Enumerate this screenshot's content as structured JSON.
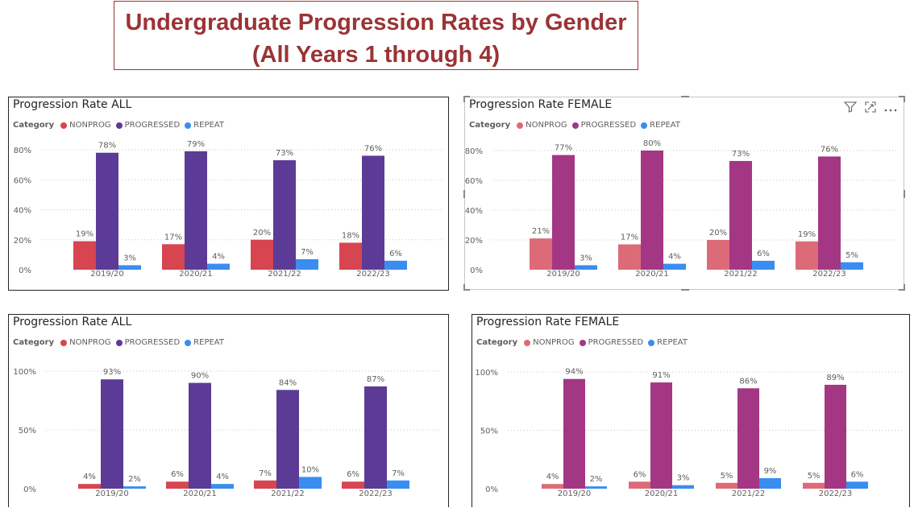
{
  "page": {
    "title_line1": "Undergraduate Progression Rates by Gender",
    "title_line2": "(All Years 1 through 4)"
  },
  "legend_title": "Category",
  "colors": {
    "all": [
      "#d64550",
      "#5c3b97",
      "#3a8df0"
    ],
    "female": [
      "#dc6b77",
      "#a33784",
      "#3a8df0"
    ]
  },
  "icons": [
    "filter-icon",
    "focus-mode-icon",
    "more-options-icon"
  ],
  "chart_data": [
    {
      "type": "bar",
      "title": "Progression Rate ALL",
      "categories": [
        "2019/20",
        "2020/21",
        "2021/22",
        "2022/23"
      ],
      "series": [
        {
          "name": "NONPROG",
          "values": [
            19,
            17,
            20,
            18
          ]
        },
        {
          "name": "PROGRESSED",
          "values": [
            78,
            79,
            73,
            76
          ]
        },
        {
          "name": "REPEAT",
          "values": [
            3,
            4,
            7,
            6
          ]
        }
      ],
      "ylim": [
        0,
        80
      ],
      "yticks": [
        0,
        20,
        40,
        60,
        80
      ],
      "ytick_labels": [
        "0%",
        "20%",
        "40%",
        "60%",
        "80%"
      ],
      "grid": true,
      "legend": "top-left"
    },
    {
      "type": "bar",
      "title": "Progression Rate FEMALE",
      "categories": [
        "2019/20",
        "2020/21",
        "2021/22",
        "2022/23"
      ],
      "series": [
        {
          "name": "NONPROG",
          "values": [
            21,
            17,
            20,
            19
          ]
        },
        {
          "name": "PROGRESSED",
          "values": [
            77,
            80,
            73,
            76
          ]
        },
        {
          "name": "REPEAT",
          "values": [
            3,
            4,
            6,
            5
          ]
        }
      ],
      "ylim": [
        0,
        80
      ],
      "yticks": [
        0,
        20,
        40,
        60,
        80
      ],
      "ytick_labels": [
        "0%",
        "20%",
        "40%",
        "60%",
        "80%"
      ],
      "grid": true,
      "legend": "top-left"
    },
    {
      "type": "bar",
      "title": "Progression Rate ALL",
      "categories": [
        "2019/20",
        "2020/21",
        "2021/22",
        "2022/23"
      ],
      "series": [
        {
          "name": "NONPROG",
          "values": [
            4,
            6,
            7,
            6
          ]
        },
        {
          "name": "PROGRESSED",
          "values": [
            93,
            90,
            84,
            87
          ]
        },
        {
          "name": "REPEAT",
          "values": [
            2,
            4,
            10,
            7
          ]
        }
      ],
      "ylim": [
        0,
        100
      ],
      "yticks": [
        0,
        50,
        100
      ],
      "ytick_labels": [
        "0%",
        "50%",
        "100%"
      ],
      "grid": true,
      "legend": "top-left"
    },
    {
      "type": "bar",
      "title": "Progression Rate FEMALE",
      "categories": [
        "2019/20",
        "2020/21",
        "2021/22",
        "2022/23"
      ],
      "series": [
        {
          "name": "NONPROG",
          "values": [
            4,
            6,
            5,
            5
          ]
        },
        {
          "name": "PROGRESSED",
          "values": [
            94,
            91,
            86,
            89
          ]
        },
        {
          "name": "REPEAT",
          "values": [
            2,
            3,
            9,
            6
          ]
        }
      ],
      "ylim": [
        0,
        100
      ],
      "yticks": [
        0,
        50,
        100
      ],
      "ytick_labels": [
        "0%",
        "50%",
        "100%"
      ],
      "grid": true,
      "legend": "top-left"
    }
  ]
}
